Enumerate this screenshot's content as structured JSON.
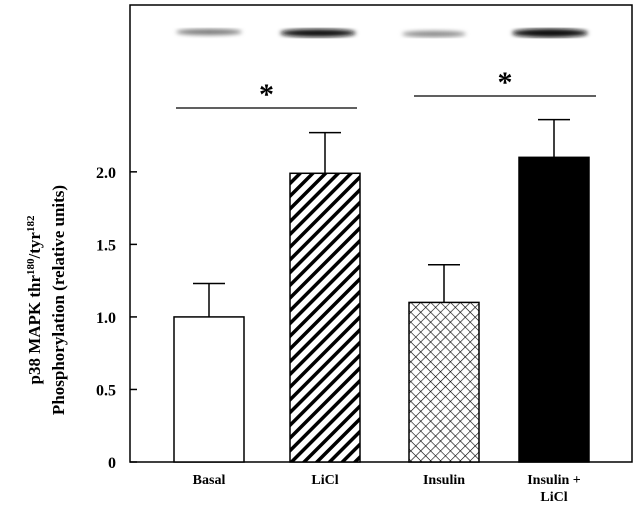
{
  "chart_data": {
    "type": "bar",
    "y_label": {
      "line1": [
        "p38 MAPK thr",
        "180",
        "/tyr",
        "182"
      ],
      "line2": "Phosphorylation (relative units)"
    },
    "categories": [
      "Basal",
      "LiCl",
      "Insulin",
      "Insulin + LiCl"
    ],
    "values": [
      1.0,
      1.99,
      1.1,
      2.1
    ],
    "errors": [
      0.23,
      0.28,
      0.26,
      0.26
    ],
    "fills": [
      "white",
      "hatch",
      "crosshatch",
      "black"
    ],
    "ylim": [
      0,
      3.15
    ],
    "yticks": [
      0,
      0.5,
      {
        "value": 1,
        "label": "1.0"
      },
      1.5,
      {
        "value": 2,
        "label": "2.0"
      }
    ],
    "annotations": [
      "*",
      "*"
    ]
  }
}
